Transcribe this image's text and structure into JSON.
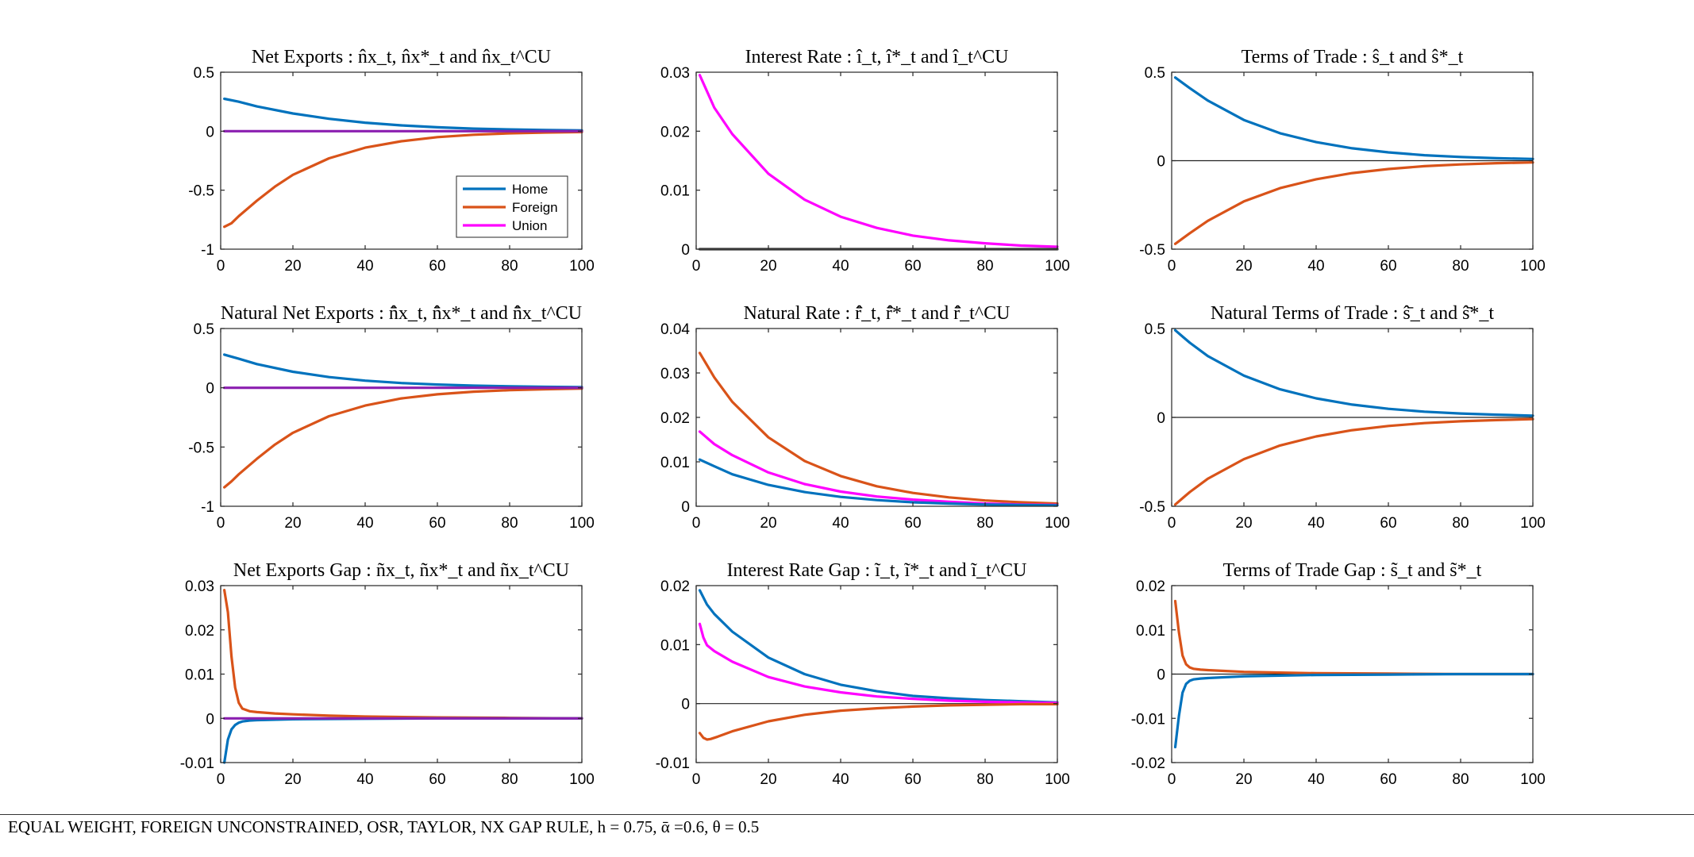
{
  "caption": "EQUAL WEIGHT, FOREIGN UNCONSTRAINED, OSR, TAYLOR, NX GAP RULE, h = 0.75, ᾱ =0.6, θ = 0.5",
  "colors": {
    "Home": "#0072BD",
    "Foreign": "#D95319",
    "Union": "#FF00FF",
    "overlap": "#8B1FB0",
    "zero": "#222222"
  },
  "legend": {
    "placement": "inside lower-right of first panel",
    "entries": [
      "Home",
      "Foreign",
      "Union"
    ]
  },
  "chart_data": [
    {
      "type": "line",
      "title": "Net Exports : n̂x_t, n̂x*_t and n̂x_t^CU",
      "xlim": [
        0,
        100
      ],
      "ylim": [
        -1,
        0.5
      ],
      "yticks": [
        "0.5",
        "0",
        "-0.5",
        "-1"
      ],
      "xticks": [
        "0",
        "20",
        "40",
        "60",
        "80",
        "100"
      ],
      "zero_line": false,
      "series": [
        {
          "name": "Home",
          "x": [
            1,
            5,
            10,
            20,
            30,
            40,
            50,
            60,
            70,
            80,
            90,
            100
          ],
          "values": [
            0.275,
            0.25,
            0.21,
            0.15,
            0.105,
            0.072,
            0.049,
            0.033,
            0.022,
            0.015,
            0.01,
            0.007
          ]
        },
        {
          "name": "Foreign",
          "x": [
            1,
            3,
            5,
            10,
            15,
            20,
            30,
            40,
            50,
            60,
            70,
            80,
            90,
            100
          ],
          "values": [
            -0.81,
            -0.78,
            -0.72,
            -0.59,
            -0.47,
            -0.37,
            -0.23,
            -0.14,
            -0.085,
            -0.05,
            -0.03,
            -0.018,
            -0.011,
            -0.007
          ]
        },
        {
          "name": "Union",
          "x": [
            1,
            100
          ],
          "values": [
            0.0,
            0.0
          ]
        }
      ]
    },
    {
      "type": "line",
      "title": "Interest Rate : î_t, î*_t and î_t^CU",
      "xlim": [
        0,
        100
      ],
      "ylim": [
        0,
        0.03
      ],
      "yticks": [
        "0.03",
        "0.02",
        "0.01",
        "0"
      ],
      "xticks": [
        "0",
        "20",
        "40",
        "60",
        "80",
        "100"
      ],
      "zero_line": false,
      "series": [
        {
          "name": "Union",
          "x": [
            1,
            5,
            10,
            20,
            30,
            40,
            50,
            60,
            70,
            80,
            90,
            100
          ],
          "values": [
            0.0295,
            0.024,
            0.0195,
            0.0128,
            0.0084,
            0.0055,
            0.0036,
            0.0023,
            0.0015,
            0.001,
            0.0006,
            0.0004
          ]
        },
        {
          "name": "Home",
          "x": [
            1,
            100
          ],
          "values": [
            0.0,
            0.0
          ]
        },
        {
          "name": "Foreign",
          "x": [
            1,
            100
          ],
          "values": [
            0.0,
            0.0
          ]
        }
      ]
    },
    {
      "type": "line",
      "title": "Terms of Trade : ŝ_t and ŝ*_t",
      "xlim": [
        0,
        100
      ],
      "ylim": [
        -0.5,
        0.5
      ],
      "yticks": [
        "0.5",
        "0",
        "-0.5"
      ],
      "xticks": [
        "0",
        "20",
        "40",
        "60",
        "80",
        "100"
      ],
      "zero_line": true,
      "series": [
        {
          "name": "Home",
          "x": [
            1,
            3,
            5,
            10,
            20,
            30,
            40,
            50,
            60,
            70,
            80,
            90,
            100
          ],
          "values": [
            0.47,
            0.44,
            0.41,
            0.34,
            0.23,
            0.155,
            0.105,
            0.07,
            0.047,
            0.031,
            0.021,
            0.014,
            0.01
          ]
        },
        {
          "name": "Foreign",
          "x": [
            1,
            3,
            5,
            10,
            20,
            30,
            40,
            50,
            60,
            70,
            80,
            90,
            100
          ],
          "values": [
            -0.47,
            -0.44,
            -0.41,
            -0.34,
            -0.23,
            -0.155,
            -0.105,
            -0.07,
            -0.047,
            -0.031,
            -0.021,
            -0.014,
            -0.01
          ]
        }
      ]
    },
    {
      "type": "line",
      "title": "Natural Net Exports : n̂̄x_t, n̂̄x*_t and n̂̄x_t^CU",
      "xlim": [
        0,
        100
      ],
      "ylim": [
        -1,
        0.5
      ],
      "yticks": [
        "0.5",
        "0",
        "-0.5",
        "-1"
      ],
      "xticks": [
        "0",
        "20",
        "40",
        "60",
        "80",
        "100"
      ],
      "zero_line": false,
      "series": [
        {
          "name": "Home",
          "x": [
            1,
            5,
            10,
            20,
            30,
            40,
            50,
            60,
            70,
            80,
            90,
            100
          ],
          "values": [
            0.28,
            0.245,
            0.2,
            0.135,
            0.09,
            0.06,
            0.04,
            0.027,
            0.018,
            0.012,
            0.008,
            0.005
          ]
        },
        {
          "name": "Foreign",
          "x": [
            1,
            3,
            5,
            10,
            15,
            20,
            30,
            40,
            50,
            60,
            70,
            80,
            90,
            100
          ],
          "values": [
            -0.84,
            -0.79,
            -0.73,
            -0.6,
            -0.48,
            -0.38,
            -0.24,
            -0.15,
            -0.09,
            -0.055,
            -0.033,
            -0.02,
            -0.012,
            -0.007
          ]
        },
        {
          "name": "Union",
          "x": [
            1,
            100
          ],
          "values": [
            0.0,
            0.0
          ]
        }
      ]
    },
    {
      "type": "line",
      "title": "Natural Rate : r̂̄_t, r̂̄*_t and r̂̄_t^CU",
      "xlim": [
        0,
        100
      ],
      "ylim": [
        0,
        0.04
      ],
      "yticks": [
        "0.04",
        "0.03",
        "0.02",
        "0.01",
        "0"
      ],
      "xticks": [
        "0",
        "20",
        "40",
        "60",
        "80",
        "100"
      ],
      "zero_line": false,
      "series": [
        {
          "name": "Foreign",
          "x": [
            1,
            5,
            10,
            20,
            30,
            40,
            50,
            60,
            70,
            80,
            90,
            100
          ],
          "values": [
            0.0345,
            0.029,
            0.0235,
            0.0155,
            0.0102,
            0.0068,
            0.0045,
            0.003,
            0.002,
            0.0013,
            0.0009,
            0.0006
          ]
        },
        {
          "name": "Union",
          "x": [
            1,
            5,
            10,
            20,
            30,
            40,
            50,
            60,
            70,
            80,
            90,
            100
          ],
          "values": [
            0.0168,
            0.014,
            0.0115,
            0.0076,
            0.005,
            0.0033,
            0.0022,
            0.0015,
            0.001,
            0.0006,
            0.0004,
            0.0003
          ]
        },
        {
          "name": "Home",
          "x": [
            1,
            5,
            10,
            20,
            30,
            40,
            50,
            60,
            70,
            80,
            90,
            100
          ],
          "values": [
            0.0105,
            0.009,
            0.0072,
            0.0048,
            0.0032,
            0.0021,
            0.0014,
            0.0009,
            0.0006,
            0.0004,
            0.0003,
            0.0002
          ]
        }
      ]
    },
    {
      "type": "line",
      "title": "Natural Terms of Trade : ŝ̄_t and ŝ̄*_t",
      "xlim": [
        0,
        100
      ],
      "ylim": [
        -0.5,
        0.5
      ],
      "yticks": [
        "0.5",
        "0",
        "-0.5"
      ],
      "xticks": [
        "0",
        "20",
        "40",
        "60",
        "80",
        "100"
      ],
      "zero_line": true,
      "series": [
        {
          "name": "Home",
          "x": [
            1,
            3,
            5,
            10,
            20,
            30,
            40,
            50,
            60,
            70,
            80,
            90,
            100
          ],
          "values": [
            0.49,
            0.455,
            0.42,
            0.345,
            0.235,
            0.158,
            0.107,
            0.072,
            0.048,
            0.032,
            0.022,
            0.015,
            0.01
          ]
        },
        {
          "name": "Foreign",
          "x": [
            1,
            3,
            5,
            10,
            20,
            30,
            40,
            50,
            60,
            70,
            80,
            90,
            100
          ],
          "values": [
            -0.49,
            -0.455,
            -0.42,
            -0.345,
            -0.235,
            -0.158,
            -0.107,
            -0.072,
            -0.048,
            -0.032,
            -0.022,
            -0.015,
            -0.01
          ]
        }
      ]
    },
    {
      "type": "line",
      "title": "Net Exports Gap : ñx_t, ñx*_t and ñx_t^CU",
      "xlim": [
        0,
        100
      ],
      "ylim": [
        -0.01,
        0.03
      ],
      "yticks": [
        "0.03",
        "0.02",
        "0.01",
        "0",
        "-0.01"
      ],
      "xticks": [
        "0",
        "20",
        "40",
        "60",
        "80",
        "100"
      ],
      "zero_line": false,
      "series": [
        {
          "name": "Foreign",
          "x": [
            1,
            2,
            3,
            4,
            5,
            6,
            8,
            10,
            15,
            20,
            30,
            40,
            60,
            80,
            100
          ],
          "values": [
            0.029,
            0.024,
            0.014,
            0.007,
            0.0035,
            0.0022,
            0.0016,
            0.0014,
            0.0011,
            0.0009,
            0.0006,
            0.0004,
            0.0002,
            0.0001,
            0.0
          ]
        },
        {
          "name": "Home",
          "x": [
            1,
            2,
            3,
            4,
            5,
            6,
            8,
            10,
            20,
            40,
            60,
            80,
            100
          ],
          "values": [
            -0.01,
            -0.0048,
            -0.0025,
            -0.0015,
            -0.001,
            -0.0007,
            -0.0005,
            -0.0004,
            -0.0002,
            -0.0001,
            0.0,
            0.0,
            0.0
          ]
        },
        {
          "name": "Union",
          "x": [
            1,
            100
          ],
          "values": [
            0.0,
            0.0
          ]
        }
      ]
    },
    {
      "type": "line",
      "title": "Interest Rate Gap : ĩ_t, ĩ*_t and ĩ_t^CU",
      "xlim": [
        0,
        100
      ],
      "ylim": [
        -0.01,
        0.02
      ],
      "yticks": [
        "0.02",
        "0.01",
        "0",
        "-0.01"
      ],
      "xticks": [
        "0",
        "20",
        "40",
        "60",
        "80",
        "100"
      ],
      "zero_line": true,
      "series": [
        {
          "name": "Home",
          "x": [
            1,
            3,
            5,
            10,
            20,
            30,
            40,
            50,
            60,
            70,
            80,
            90,
            100
          ],
          "values": [
            0.0192,
            0.0168,
            0.0152,
            0.0122,
            0.0078,
            0.005,
            0.0032,
            0.0021,
            0.0013,
            0.0009,
            0.0006,
            0.0004,
            0.0002
          ]
        },
        {
          "name": "Union",
          "x": [
            1,
            2,
            3,
            5,
            10,
            20,
            30,
            40,
            50,
            60,
            70,
            80,
            90,
            100
          ],
          "values": [
            0.0135,
            0.0112,
            0.0099,
            0.0089,
            0.0071,
            0.0045,
            0.0029,
            0.0019,
            0.0012,
            0.0008,
            0.0005,
            0.0003,
            0.0002,
            0.0001
          ]
        },
        {
          "name": "Foreign",
          "x": [
            1,
            2,
            3,
            4,
            6,
            10,
            20,
            30,
            40,
            50,
            60,
            70,
            80,
            90,
            100
          ],
          "values": [
            -0.005,
            -0.0058,
            -0.0061,
            -0.006,
            -0.0056,
            -0.0047,
            -0.003,
            -0.0019,
            -0.0012,
            -0.0008,
            -0.0005,
            -0.0003,
            -0.0002,
            -0.0001,
            -0.0001
          ]
        }
      ]
    },
    {
      "type": "line",
      "title": "Terms of Trade Gap : s̃_t and s̃*_t",
      "xlim": [
        0,
        100
      ],
      "ylim": [
        -0.02,
        0.02
      ],
      "yticks": [
        "0.02",
        "0.01",
        "0",
        "-0.01",
        "-0.02"
      ],
      "xticks": [
        "0",
        "20",
        "40",
        "60",
        "80",
        "100"
      ],
      "zero_line": true,
      "series": [
        {
          "name": "Foreign",
          "x": [
            1,
            2,
            3,
            4,
            5,
            6,
            8,
            10,
            15,
            20,
            40,
            60,
            80,
            100
          ],
          "values": [
            0.0165,
            0.0095,
            0.0042,
            0.0022,
            0.0015,
            0.0012,
            0.001,
            0.0009,
            0.0007,
            0.0005,
            0.0002,
            0.0001,
            0.0,
            0.0
          ]
        },
        {
          "name": "Home",
          "x": [
            1,
            2,
            3,
            4,
            5,
            6,
            8,
            10,
            15,
            20,
            40,
            60,
            80,
            100
          ],
          "values": [
            -0.0165,
            -0.0095,
            -0.0042,
            -0.0022,
            -0.0015,
            -0.0012,
            -0.001,
            -0.0009,
            -0.0007,
            -0.0005,
            -0.0002,
            -0.0001,
            0.0,
            0.0
          ]
        }
      ]
    }
  ]
}
